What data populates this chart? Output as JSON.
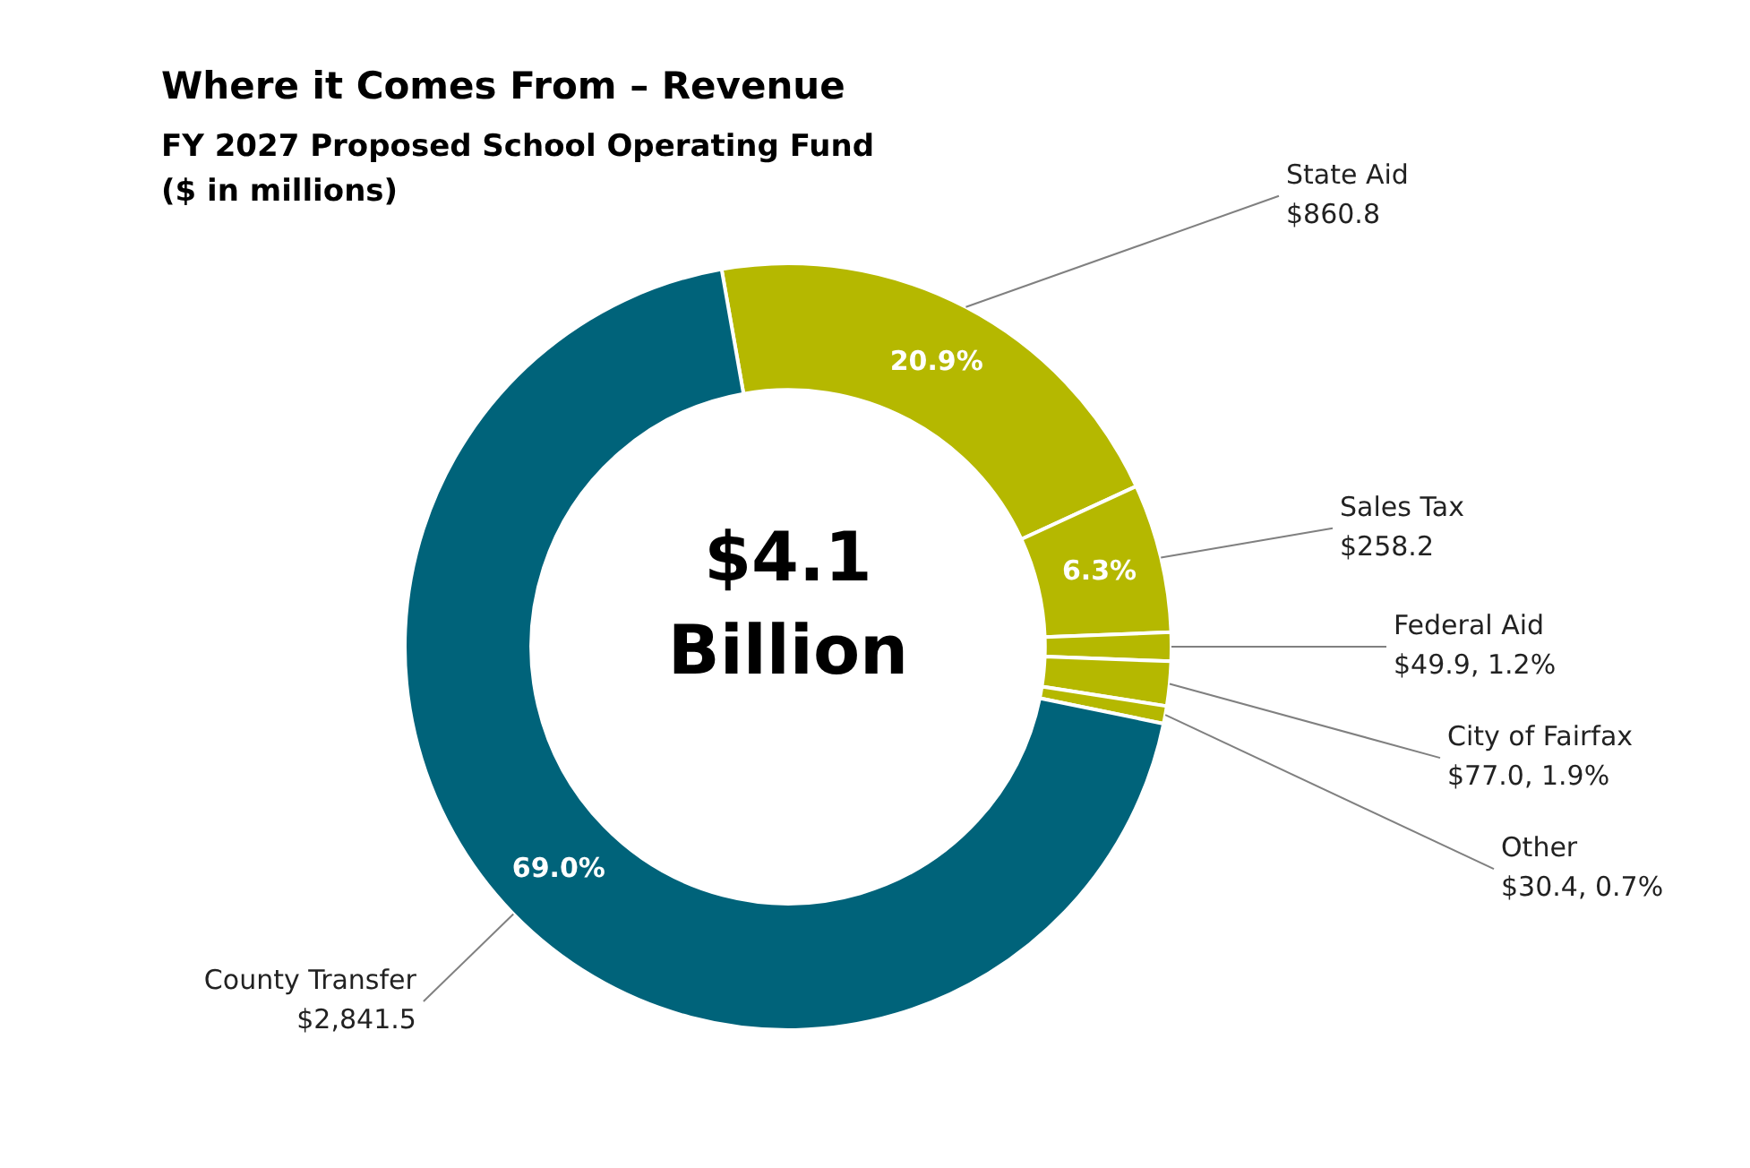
{
  "chart_data": {
    "type": "donut",
    "title": "Where it Comes From – Revenue",
    "subtitle": "FY 2027 Proposed School Operating Fund\n($ in millions)",
    "categories": [
      "State Aid",
      "Sales Tax",
      "Federal Aid",
      "City of Fairfax",
      "Other",
      "County Transfer"
    ],
    "values": [
      860.8,
      258.2,
      49.9,
      77.0,
      30.4,
      2841.5
    ],
    "colors": [
      "#b5b800",
      "#b5b800",
      "#b5b800",
      "#b5b800",
      "#b5b800",
      "#00637a"
    ],
    "value_labels": [
      "$860.8",
      "$258.2",
      "$49.9, 1.2%",
      "$77.0, 1.9%",
      "$30.4, 0.7%",
      "$2,841.5"
    ],
    "annotations": [
      {
        "text": "20.9%",
        "x": "State Aid"
      },
      {
        "text": "6.3%",
        "x": "Sales Tax"
      },
      {
        "text": "69.0%",
        "x": "County Transfer"
      },
      "$4.1\nBillion"
    ],
    "legend": false
  }
}
